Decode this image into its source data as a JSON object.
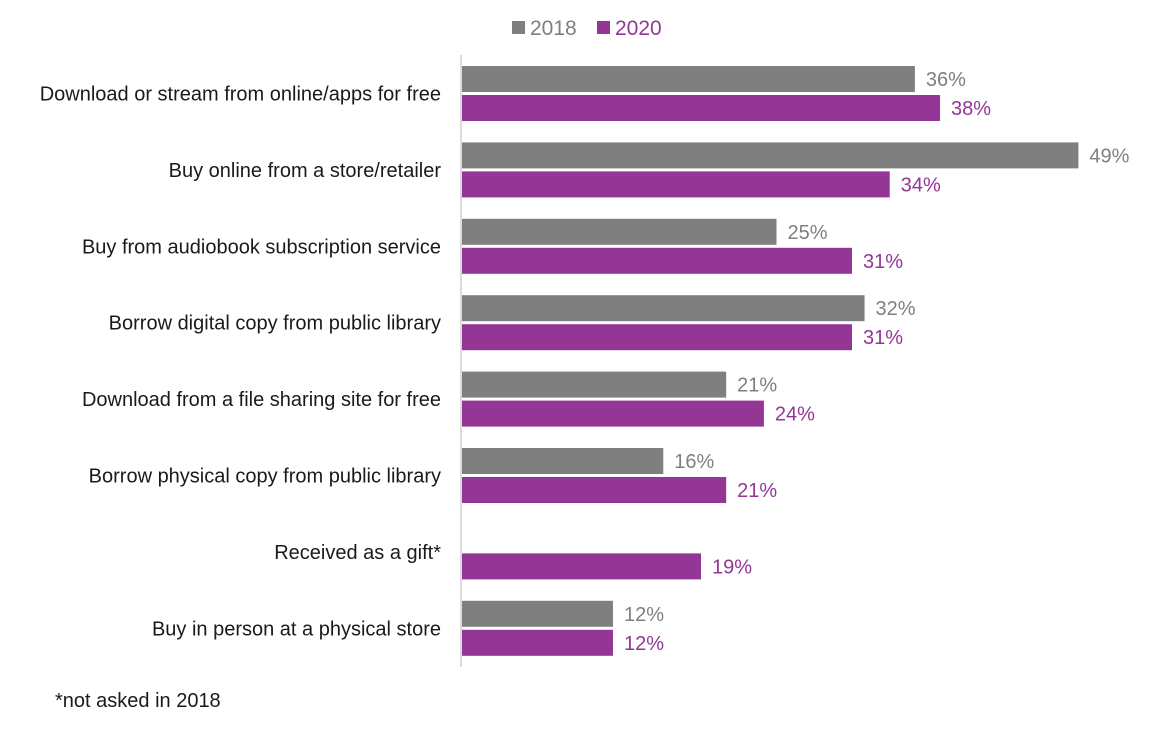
{
  "chart_data": {
    "type": "bar",
    "orientation": "horizontal",
    "categories": [
      "Download or stream from online/apps for free",
      "Buy online from a store/retailer",
      "Buy from audiobook subscription service",
      "Borrow digital copy from public library",
      "Download from a file sharing site for free",
      "Borrow physical copy from public library",
      "Received as a gift*",
      "Buy in person at a physical store"
    ],
    "series": [
      {
        "name": "2018",
        "color": "#7f7f7f",
        "values": [
          36,
          49,
          25,
          32,
          21,
          16,
          null,
          12
        ],
        "labels": [
          "36%",
          "49%",
          "25%",
          "32%",
          "21%",
          "16%",
          "",
          "12%"
        ]
      },
      {
        "name": "2020",
        "color": "#933695",
        "values": [
          38,
          34,
          31,
          31,
          24,
          21,
          19,
          12
        ],
        "labels": [
          "38%",
          "34%",
          "31%",
          "31%",
          "24%",
          "21%",
          "19%",
          "12%"
        ]
      }
    ],
    "xlim": [
      0,
      52
    ],
    "grid": false,
    "legend_position": "top-center",
    "footnote": "*not asked in 2018"
  }
}
